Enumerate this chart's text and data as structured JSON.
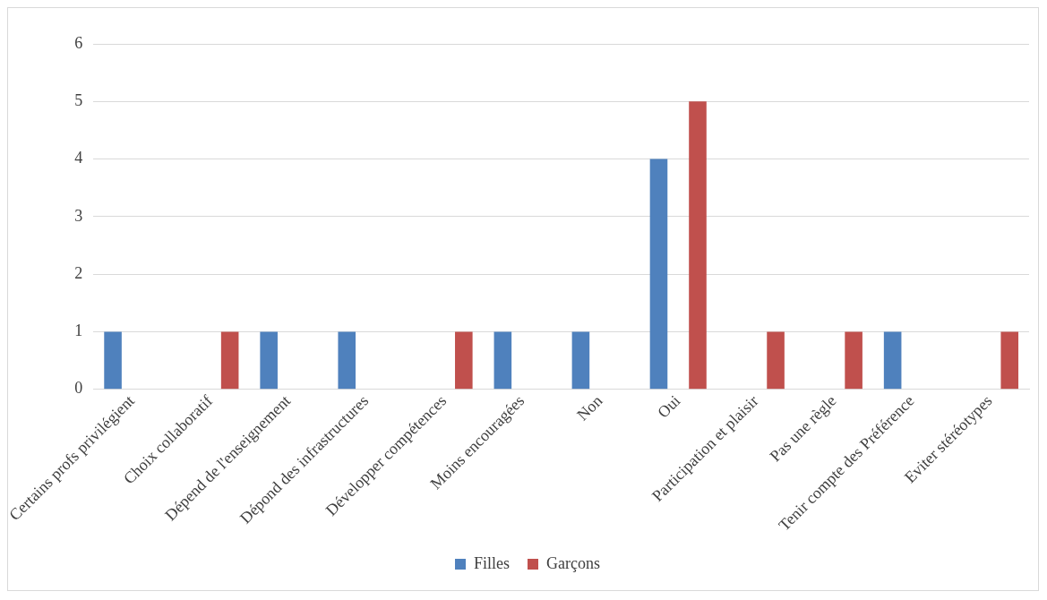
{
  "chart_data": {
    "type": "bar",
    "categories": [
      "Certains profs privilégient",
      "Choix collaboratif",
      "Dépend de l'enseignement",
      "Dépond des infrastructures",
      "Développer compétences",
      "Moins encouragées",
      "Non",
      "Oui",
      "Participation et plaisir",
      "Pas une règle",
      "Tenir compte des Préférence",
      "Eviter stéréotypes"
    ],
    "series": [
      {
        "name": "Filles",
        "color": "#4f81bd",
        "values": [
          1,
          null,
          1,
          1,
          null,
          1,
          1,
          4,
          null,
          null,
          1,
          null
        ]
      },
      {
        "name": "Garçons",
        "color": "#c0504d",
        "values": [
          null,
          1,
          null,
          null,
          1,
          null,
          null,
          5,
          1,
          1,
          null,
          1
        ]
      }
    ],
    "ylim": [
      0,
      6
    ],
    "yticks": [
      0,
      1,
      2,
      3,
      4,
      5,
      6
    ],
    "grid": "y",
    "legend": "bottom"
  }
}
